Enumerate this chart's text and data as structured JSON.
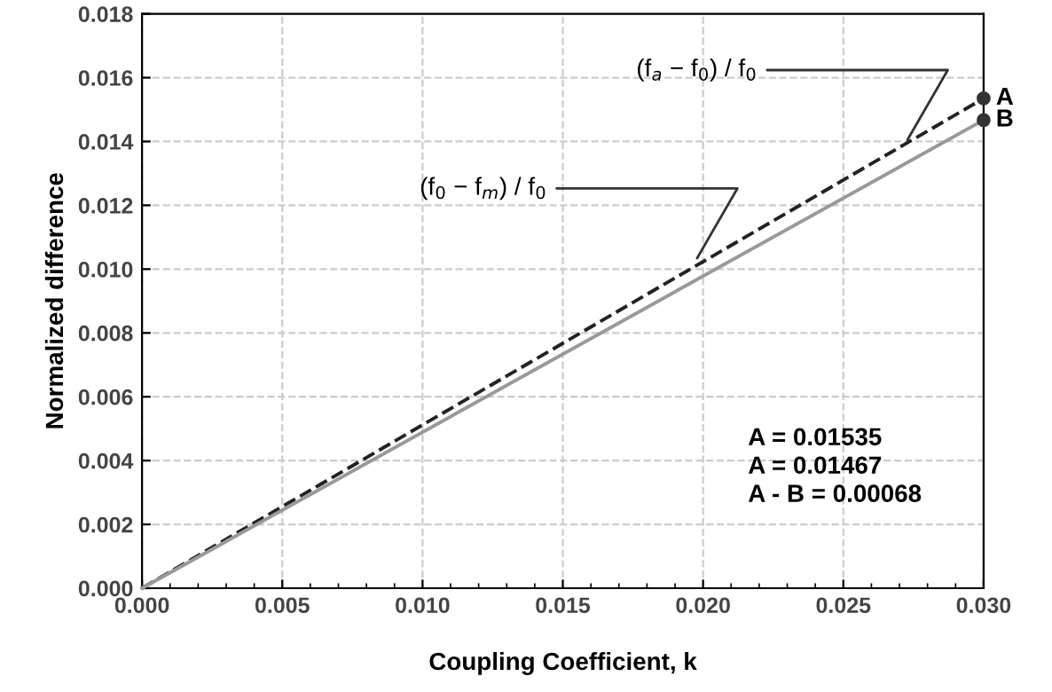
{
  "chart_data": {
    "type": "line",
    "xlabel": "Coupling Coefficient, k",
    "ylabel": "Normalized difference",
    "x": [
      0.0,
      0.03
    ],
    "series": [
      {
        "color": "#222222",
        "values": [
          0.0,
          0.01535
        ],
        "line_style": "dashed"
      },
      {
        "color": "#999999",
        "values": [
          0.0,
          0.01467
        ],
        "line_style": "solid"
      }
    ],
    "annotations": [
      {
        "text": "A",
        "x": 0.03,
        "y": 0.01535
      },
      {
        "text": "B",
        "x": 0.03,
        "y": 0.01467
      },
      {
        "text": "(f$_{a}$ − f$_{0}$) / f$_{0}$",
        "x": 0.0272,
        "y": 0.01392
      },
      {
        "text": "(f$_{0}$ − f$_{m}$) / f$_{0}$",
        "x": 0.0197,
        "y": 0.01021
      },
      "A = 0.01535\nA = 0.01467\nA - B = 0.00068"
    ],
    "xlim": [
      0.0,
      0.03
    ],
    "xticks": [
      {
        "value": 0,
        "label": "0.000"
      },
      0.005,
      {
        "value": 0.01,
        "label": "0.010"
      },
      0.015,
      {
        "value": 0.02,
        "label": "0.020"
      },
      0.025,
      {
        "value": 0.03,
        "label": "0.030"
      }
    ],
    "ylim": [
      0.0,
      0.018
    ],
    "yticks": [
      {
        "value": 0,
        "label": "0.000"
      },
      0.002,
      0.004,
      0.006,
      0.008,
      {
        "value": 0.01,
        "label": "0.010"
      },
      0.012,
      0.014,
      0.016,
      0.018
    ],
    "grid": true
  }
}
